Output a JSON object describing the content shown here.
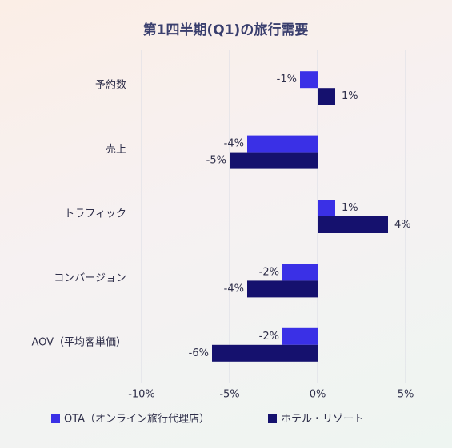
{
  "chart_data": {
    "type": "hbar",
    "title": "第1四半期(Q1)の旅行需要",
    "categories": [
      "予約数",
      "売上",
      "トラフィック",
      "コンバージョン",
      "AOV（平均客単価）"
    ],
    "series": [
      {
        "name": "OTA（オンライン旅行代理店）",
        "color": "#3a30e6",
        "values": [
          -1,
          -4,
          1,
          -2,
          -2
        ],
        "value_labels": [
          "-1%",
          "-4%",
          "1%",
          "-2%",
          "-2%"
        ]
      },
      {
        "name": "ホテル・リゾート",
        "color": "#15116e",
        "values": [
          1,
          -5,
          4,
          -4,
          -6
        ],
        "value_labels": [
          "1%",
          "-5%",
          "4%",
          "-4%",
          "-6%"
        ]
      }
    ],
    "xlim": [
      -10,
      5
    ],
    "xticks": [
      {
        "value": -10,
        "label": "-10%"
      },
      {
        "value": -5,
        "label": "-5%"
      },
      {
        "value": 0,
        "label": "0%"
      },
      {
        "value": 5,
        "label": "5%"
      }
    ],
    "grid": true
  }
}
